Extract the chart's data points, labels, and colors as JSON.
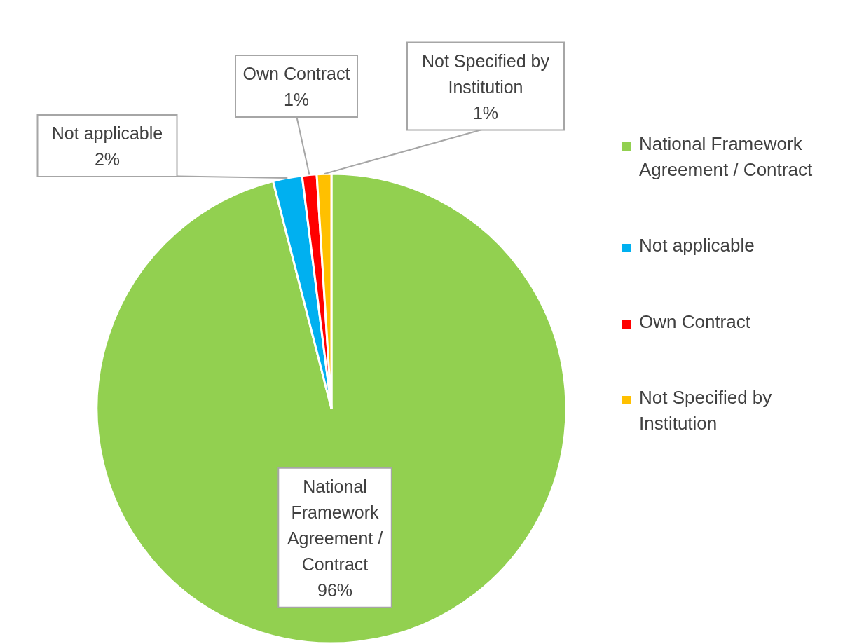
{
  "chart_data": {
    "type": "pie",
    "categories": [
      "National Framework Agreement / Contract",
      "Not applicable",
      "Own Contract",
      "Not Specified by Institution"
    ],
    "values": [
      96,
      2,
      1,
      1
    ],
    "colors": [
      "#92d050",
      "#00b0f0",
      "#ff0000",
      "#ffc000"
    ],
    "value_labels": [
      "96%",
      "2%",
      "1%",
      "1%"
    ],
    "legend": "right"
  }
}
